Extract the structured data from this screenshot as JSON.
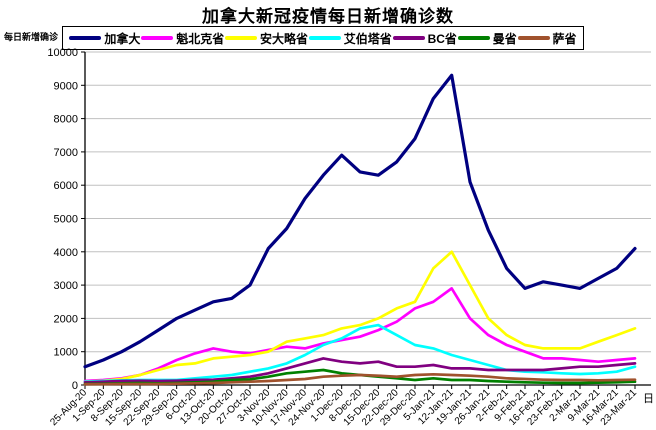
{
  "title": "加拿大新冠疫情每日新增确诊数",
  "y_axis": {
    "unit_label": "每日新增确诊",
    "min": 0,
    "max": 10000,
    "tick_step": 1000,
    "tick_labels": [
      "0",
      "1000",
      "2000",
      "3000",
      "4000",
      "5000",
      "6000",
      "7000",
      "8000",
      "9000",
      "10000"
    ]
  },
  "x_axis": {
    "suffix_label": "日"
  },
  "style": {
    "gridline_color": "#c0c0c0",
    "axis_color": "#000000",
    "background": "#ffffff"
  },
  "chart_data": {
    "type": "line",
    "title": "加拿大新冠疫情每日新增确诊数",
    "xlabel": "日",
    "ylabel": "每日新增确诊",
    "ylim": [
      0,
      10000
    ],
    "grid": "horizontal",
    "legend_position": "top",
    "x": [
      "25-Aug-20",
      "1-Sep-20",
      "8-Sep-20",
      "15-Sep-20",
      "22-Sep-20",
      "29-Sep-20",
      "6-Oct-20",
      "13-Oct-20",
      "20-Oct-20",
      "27-Oct-20",
      "3-Nov-20",
      "10-Nov-20",
      "17-Nov-20",
      "24-Nov-20",
      "1-Dec-20",
      "8-Dec-20",
      "15-Dec-20",
      "22-Dec-20",
      "29-Dec-20",
      "5-Jan-21",
      "12-Jan-21",
      "19-Jan-21",
      "26-Jan-21",
      "2-Feb-21",
      "9-Feb-21",
      "16-Feb-21",
      "23-Feb-21",
      "2-Mar-21",
      "9-Mar-21",
      "16-Mar-21",
      "23-Mar-21"
    ],
    "series": [
      {
        "name": "加拿大",
        "key": "canada",
        "color": "#000080",
        "values": [
          550,
          750,
          1000,
          1300,
          1650,
          2000,
          2250,
          2500,
          2600,
          3000,
          4100,
          4700,
          5600,
          6300,
          6900,
          6400,
          6300,
          6700,
          7400,
          8600,
          9300,
          6100,
          4650,
          3500,
          2900,
          3100,
          3000,
          2900,
          3200,
          3500,
          4100
        ]
      },
      {
        "name": "魁北克省",
        "key": "quebec",
        "color": "#FF00FF",
        "values": [
          120,
          150,
          200,
          300,
          500,
          750,
          950,
          1100,
          1000,
          950,
          1050,
          1150,
          1100,
          1250,
          1350,
          1450,
          1650,
          1900,
          2300,
          2500,
          2900,
          2000,
          1500,
          1200,
          1000,
          800,
          800,
          750,
          700,
          750,
          800
        ]
      },
      {
        "name": "安大略省",
        "key": "ontario",
        "color": "#FFFF00",
        "values": [
          100,
          130,
          180,
          300,
          450,
          600,
          650,
          800,
          850,
          900,
          1000,
          1300,
          1400,
          1500,
          1700,
          1800,
          2000,
          2300,
          2500,
          3500,
          4000,
          3000,
          2000,
          1500,
          1200,
          1100,
          1100,
          1100,
          1300,
          1500,
          1700
        ]
      },
      {
        "name": "艾伯塔省",
        "key": "alberta",
        "color": "#00FFFF",
        "values": [
          100,
          120,
          140,
          150,
          150,
          150,
          200,
          250,
          300,
          400,
          500,
          650,
          900,
          1200,
          1400,
          1700,
          1800,
          1500,
          1200,
          1100,
          900,
          750,
          600,
          450,
          400,
          380,
          350,
          330,
          350,
          400,
          550
        ]
      },
      {
        "name": "BC省",
        "key": "bc",
        "color": "#800080",
        "values": [
          80,
          100,
          120,
          130,
          120,
          130,
          150,
          160,
          200,
          250,
          350,
          500,
          650,
          800,
          700,
          650,
          700,
          550,
          550,
          600,
          500,
          500,
          450,
          450,
          450,
          450,
          500,
          550,
          550,
          600,
          650
        ]
      },
      {
        "name": "曼省",
        "key": "manitoba",
        "color": "#008000",
        "values": [
          30,
          40,
          50,
          60,
          50,
          60,
          80,
          100,
          150,
          170,
          250,
          350,
          400,
          450,
          350,
          300,
          250,
          200,
          150,
          200,
          150,
          150,
          120,
          100,
          80,
          70,
          60,
          60,
          70,
          80,
          100
        ]
      },
      {
        "name": "萨省",
        "key": "saskatchewan",
        "color": "#A0522D",
        "values": [
          20,
          25,
          30,
          30,
          30,
          40,
          50,
          60,
          80,
          100,
          120,
          150,
          180,
          250,
          280,
          300,
          280,
          250,
          300,
          320,
          300,
          280,
          250,
          200,
          180,
          160,
          150,
          150,
          140,
          150,
          160
        ]
      }
    ]
  }
}
